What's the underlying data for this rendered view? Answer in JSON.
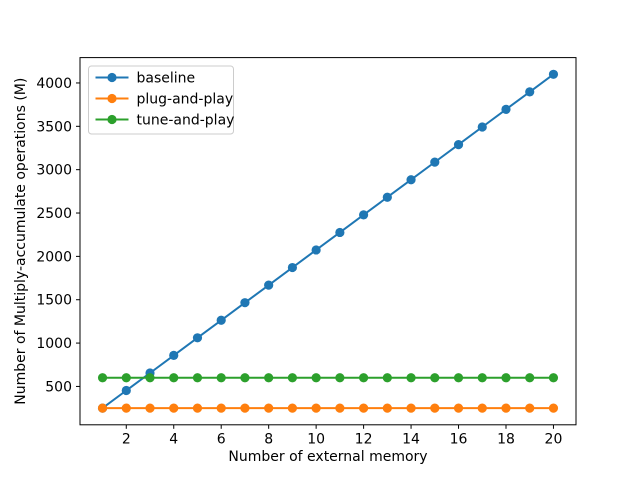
{
  "chart_data": {
    "type": "line",
    "title": "",
    "xlabel": "Number of external memory",
    "ylabel": "Number of Multiply-accumulate operations (M)",
    "x": [
      1,
      2,
      3,
      4,
      5,
      6,
      7,
      8,
      9,
      10,
      11,
      12,
      13,
      14,
      15,
      16,
      17,
      18,
      19,
      20
    ],
    "series": [
      {
        "name": "baseline",
        "color": "#1f77b4",
        "marker": "o",
        "values": [
          250,
          453,
          655,
          858,
          1061,
          1263,
          1466,
          1668,
          1871,
          2074,
          2276,
          2479,
          2682,
          2884,
          3087,
          3289,
          3492,
          3695,
          3897,
          4100
        ]
      },
      {
        "name": "plug-and-play",
        "color": "#ff7f0e",
        "marker": "o",
        "values": [
          250,
          250,
          250,
          250,
          250,
          250,
          250,
          250,
          250,
          250,
          250,
          250,
          250,
          250,
          250,
          250,
          250,
          250,
          250,
          250
        ]
      },
      {
        "name": "tune-and-play",
        "color": "#2ca02c",
        "marker": "o",
        "values": [
          600,
          600,
          600,
          600,
          600,
          600,
          600,
          600,
          600,
          600,
          600,
          600,
          600,
          600,
          600,
          600,
          600,
          600,
          600,
          600
        ]
      }
    ],
    "xticks": [
      2,
      4,
      6,
      8,
      10,
      12,
      14,
      16,
      18,
      20
    ],
    "yticks": [
      500,
      1000,
      1500,
      2000,
      2500,
      3000,
      3500,
      4000
    ],
    "xlim": [
      0.05,
      20.95
    ],
    "ylim": [
      57.5,
      4292.5
    ],
    "grid": false,
    "legend_position": "upper left",
    "legend_entries": [
      "baseline",
      "plug-and-play",
      "tune-and-play"
    ],
    "background_color": "#ffffff",
    "spine_color": "#000000",
    "legend_border_color": "#cccccc"
  }
}
